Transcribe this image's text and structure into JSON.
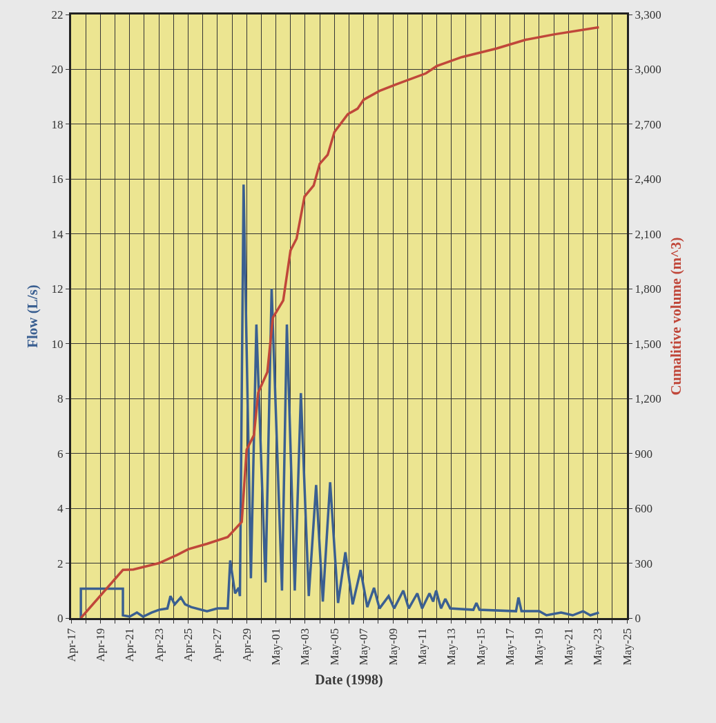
{
  "chart_data": {
    "type": "line",
    "xlabel": "Date (1998)",
    "ylabel": "Flow (L/s)",
    "y2label": "Cumalitive volume (m^3)",
    "series": [
      {
        "color": "#3a5f91",
        "axis": "y",
        "x": [
          "1998-04-17T16:00",
          "1998-04-17T16:00",
          "1998-04-20T13:00",
          "1998-04-20T13:00",
          "1998-04-21T00:00",
          "1998-04-21T12:00",
          "1998-04-21T22:00",
          "1998-04-22T12:00",
          "1998-04-23T00:00",
          "1998-04-23T14:00",
          "1998-04-23T19:00",
          "1998-04-24T02:00",
          "1998-04-24T12:00",
          "1998-04-24T19:00",
          "1998-04-25T05:00",
          "1998-04-26T07:00",
          "1998-04-27T00:00",
          "1998-04-27T17:00",
          "1998-04-27T21:00",
          "1998-04-28T05:00",
          "1998-04-28T11:00",
          "1998-04-28T13:00",
          "1998-04-28T19:00",
          "1998-04-29T07:00",
          "1998-04-29T16:00",
          "1998-04-30T07:00",
          "1998-04-30T17:00",
          "1998-05-01T10:00",
          "1998-05-01T18:00",
          "1998-05-02T07:00",
          "1998-05-02T17:00",
          "1998-05-03T06:00",
          "1998-05-03T18:00",
          "1998-05-04T05:00",
          "1998-05-04T17:00",
          "1998-05-05T06:00",
          "1998-05-05T18:00",
          "1998-05-06T06:00",
          "1998-05-06T19:00",
          "1998-05-07T06:00",
          "1998-05-07T17:00",
          "1998-05-08T02:00",
          "1998-05-08T17:00",
          "1998-05-09T02:00",
          "1998-05-09T17:00",
          "1998-05-10T02:00",
          "1998-05-10T16:00",
          "1998-05-11T00:00",
          "1998-05-11T12:00",
          "1998-05-11T18:00",
          "1998-05-11T23:00",
          "1998-05-12T07:00",
          "1998-05-12T14:00",
          "1998-05-12T22:00",
          "1998-05-14T12:00",
          "1998-05-14T17:00",
          "1998-05-14T22:00",
          "1998-05-17T10:00",
          "1998-05-17T14:00",
          "1998-05-17T19:00",
          "1998-05-19T00:00",
          "1998-05-19T12:00",
          "1998-05-20T12:00",
          "1998-05-21T07:00",
          "1998-05-22T00:00",
          "1998-05-22T12:00",
          "1998-05-23T02:00"
        ],
        "values": [
          0,
          1.07,
          1.07,
          0.1,
          0.05,
          0.2,
          0.05,
          0.2,
          0.3,
          0.35,
          0.8,
          0.5,
          0.75,
          0.5,
          0.4,
          0.25,
          0.35,
          0.35,
          2.1,
          0.9,
          1.1,
          0.8,
          15.8,
          1.45,
          10.7,
          1.3,
          12.0,
          1.0,
          10.7,
          1.0,
          8.2,
          0.8,
          4.85,
          0.6,
          4.95,
          0.55,
          2.4,
          0.5,
          1.75,
          0.4,
          1.1,
          0.35,
          0.8,
          0.35,
          1.0,
          0.35,
          0.9,
          0.35,
          0.9,
          0.6,
          1.0,
          0.35,
          0.7,
          0.35,
          0.3,
          0.55,
          0.3,
          0.25,
          0.75,
          0.25,
          0.25,
          0.1,
          0.2,
          0.1,
          0.25,
          0.1,
          0.2
        ]
      },
      {
        "color": "#c0473a",
        "axis": "y2",
        "x": [
          "1998-04-17T16:00",
          "1998-04-20T13:00",
          "1998-04-21T06:00",
          "1998-04-23T00:00",
          "1998-04-24T06:00",
          "1998-04-25T00:00",
          "1998-04-26T07:00",
          "1998-04-27T17:00",
          "1998-04-28T16:00",
          "1998-04-29T00:00",
          "1998-04-29T12:00",
          "1998-04-29T19:00",
          "1998-04-30T10:00",
          "1998-04-30T19:00",
          "1998-05-01T12:00",
          "1998-05-02T00:00",
          "1998-05-02T10:00",
          "1998-05-02T23:00",
          "1998-05-03T14:00",
          "1998-05-04T00:00",
          "1998-05-04T13:00",
          "1998-05-05T00:00",
          "1998-05-05T22:00",
          "1998-05-06T14:00",
          "1998-05-07T00:00",
          "1998-05-08T02:00",
          "1998-05-09T07:00",
          "1998-05-11T06:00",
          "1998-05-12T00:00",
          "1998-05-13T17:00",
          "1998-05-16T02:00",
          "1998-05-18T02:00",
          "1998-05-20T00:00",
          "1998-05-23T02:00"
        ],
        "values": [
          0,
          263,
          265,
          300,
          345,
          376,
          406,
          443,
          526,
          920,
          1000,
          1233,
          1345,
          1642,
          1736,
          2010,
          2075,
          2305,
          2365,
          2484,
          2533,
          2657,
          2755,
          2785,
          2834,
          2882,
          2920,
          2978,
          3018,
          3067,
          3114,
          3162,
          3191,
          3230
        ]
      }
    ],
    "xlim": [
      "1998-04-17",
      "1998-05-25"
    ],
    "xticks": [
      {
        "value": "1998-04-17",
        "label": "Apr-17"
      },
      {
        "value": "1998-04-18",
        "label": null
      },
      {
        "value": "1998-04-19",
        "label": "Apr-19"
      },
      {
        "value": "1998-04-20",
        "label": null
      },
      {
        "value": "1998-04-21",
        "label": "Apr-21"
      },
      {
        "value": "1998-04-22",
        "label": null
      },
      {
        "value": "1998-04-23",
        "label": "Apr-23"
      },
      {
        "value": "1998-04-24",
        "label": null
      },
      {
        "value": "1998-04-25",
        "label": "Apr-25"
      },
      {
        "value": "1998-04-26",
        "label": null
      },
      {
        "value": "1998-04-27",
        "label": "Apr-27"
      },
      {
        "value": "1998-04-28",
        "label": null
      },
      {
        "value": "1998-04-29",
        "label": "Apr-29"
      },
      {
        "value": "1998-04-30",
        "label": null
      },
      {
        "value": "1998-05-01",
        "label": "May-01"
      },
      {
        "value": "1998-05-02",
        "label": null
      },
      {
        "value": "1998-05-03",
        "label": "May-03"
      },
      {
        "value": "1998-05-04",
        "label": null
      },
      {
        "value": "1998-05-05",
        "label": "May-05"
      },
      {
        "value": "1998-05-06",
        "label": null
      },
      {
        "value": "1998-05-07",
        "label": "May-07"
      },
      {
        "value": "1998-05-08",
        "label": null
      },
      {
        "value": "1998-05-09",
        "label": "May-09"
      },
      {
        "value": "1998-05-10",
        "label": null
      },
      {
        "value": "1998-05-11",
        "label": "May-11"
      },
      {
        "value": "1998-05-12",
        "label": null
      },
      {
        "value": "1998-05-13",
        "label": "May-13"
      },
      {
        "value": "1998-05-14",
        "label": null
      },
      {
        "value": "1998-05-15",
        "label": "May-15"
      },
      {
        "value": "1998-05-16",
        "label": null
      },
      {
        "value": "1998-05-17",
        "label": "May-17"
      },
      {
        "value": "1998-05-18",
        "label": null
      },
      {
        "value": "1998-05-19",
        "label": "May-19"
      },
      {
        "value": "1998-05-20",
        "label": null
      },
      {
        "value": "1998-05-21",
        "label": "May-21"
      },
      {
        "value": "1998-05-22",
        "label": null
      },
      {
        "value": "1998-05-23",
        "label": "May-23"
      },
      {
        "value": "1998-05-24",
        "label": null
      },
      {
        "value": "1998-05-25",
        "label": "May-25"
      }
    ],
    "ylim": [
      0,
      22
    ],
    "yticks": [
      0,
      2,
      4,
      6,
      8,
      10,
      12,
      14,
      16,
      18,
      20,
      22
    ],
    "y2lim": [
      0,
      3300
    ],
    "y2ticks": [
      0,
      300,
      600,
      900,
      {
        "value": 1200,
        "label": "1,200"
      },
      {
        "value": 1500,
        "label": "1,500"
      },
      {
        "value": 1800,
        "label": "1,800"
      },
      {
        "value": 2100,
        "label": "2,100"
      },
      {
        "value": 2400,
        "label": "2,400"
      },
      {
        "value": 2700,
        "label": "2,700"
      },
      {
        "value": 3000,
        "label": "3,000"
      },
      {
        "value": 3300,
        "label": "3,300"
      }
    ],
    "grid": true,
    "marker": "none",
    "line_style": "solid"
  }
}
